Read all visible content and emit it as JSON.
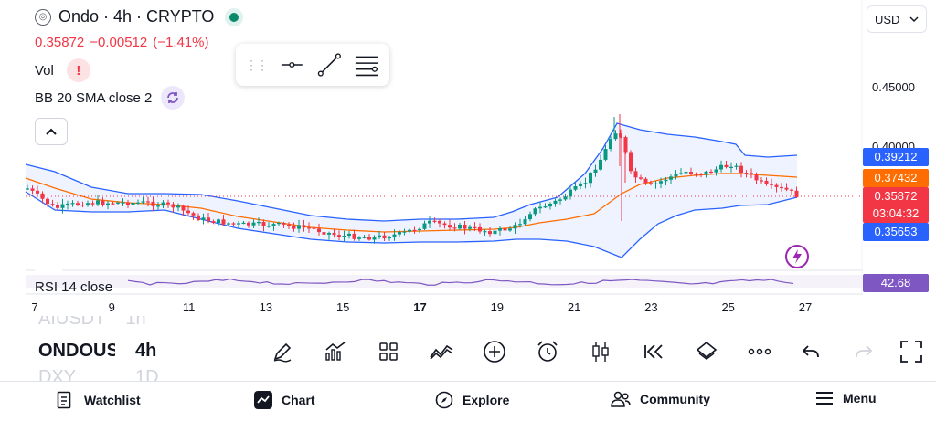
{
  "header": {
    "symbol_title": "Ondo · 4h · CRYPTO",
    "logo_glyph": "◎",
    "price": "0.35872",
    "change": "−0.00512",
    "change_pct": "(−1.41%)",
    "vol_label": "Vol",
    "vol_warning": "!",
    "indicator_label": "BB 20 SMA close 2",
    "rsi_label": "RSI 14 close"
  },
  "currency": {
    "value": "USD"
  },
  "price_axis": {
    "ticks": [
      "0.45000",
      "0.40000"
    ],
    "tags": {
      "bb_upper": "0.39212",
      "bb_basis": "0.37432",
      "last_price": "0.35872",
      "countdown": "03:04:32",
      "bb_lower": "0.35653",
      "rsi": "42.68"
    }
  },
  "time_axis": {
    "labels": [
      "7",
      "9",
      "11",
      "13",
      "15",
      "17",
      "19",
      "21",
      "23",
      "25",
      "27"
    ],
    "bold_label": "17"
  },
  "watchlist_stack": {
    "prev_symbol": "AIUSDT",
    "prev_tf": "1h",
    "symbol": "ONDOUSDT",
    "timeframe": "4h",
    "next_symbol": "DXY",
    "next_tf": "1D"
  },
  "toolbar_icons": [
    "pencil-icon",
    "indicators-icon",
    "layout-grid-icon",
    "compare-icon",
    "add-icon",
    "alarm-icon",
    "candle-type-icon",
    "replay-icon",
    "layers-icon",
    "more-icon",
    "undo-icon",
    "redo-icon",
    "fullscreen-icon"
  ],
  "bottom_nav": {
    "watchlist": "Watchlist",
    "chart": "Chart",
    "explore": "Explore",
    "community": "Community",
    "menu": "Menu"
  },
  "colors": {
    "up": "#089981",
    "down": "#f23645",
    "bb_band": "#2962ff",
    "bb_basis": "#ff6d00",
    "rsi": "#7e57c2"
  }
}
